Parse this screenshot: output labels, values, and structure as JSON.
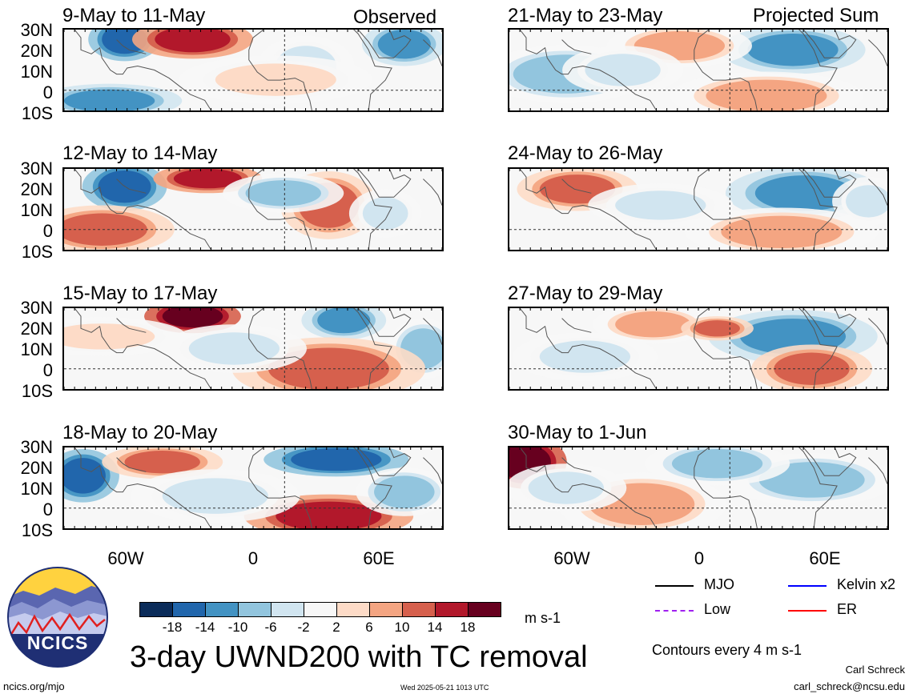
{
  "panels_left": [
    {
      "title": "9-May to 11-May",
      "label": "Observed"
    },
    {
      "title": "12-May to 14-May",
      "label": ""
    },
    {
      "title": "15-May to 17-May",
      "label": ""
    },
    {
      "title": "18-May to 20-May",
      "label": ""
    }
  ],
  "panels_right": [
    {
      "title": "21-May to 23-May",
      "label": "Projected Sum"
    },
    {
      "title": "24-May to 26-May",
      "label": ""
    },
    {
      "title": "27-May to 29-May",
      "label": ""
    },
    {
      "title": "30-May to 1-Jun",
      "label": ""
    }
  ],
  "lat_labels": [
    "30N",
    "20N",
    "10N",
    "0",
    "10S"
  ],
  "lon_labels": [
    "60W",
    "0",
    "60E"
  ],
  "colorbar": {
    "ticks": [
      "-18",
      "-14",
      "-10",
      "-6",
      "-2",
      "2",
      "6",
      "10",
      "14",
      "18"
    ],
    "colors": [
      "#0b2c5a",
      "#2166ac",
      "#4393c3",
      "#92c5de",
      "#d1e5f0",
      "#f7f7f7",
      "#fddbc7",
      "#f4a582",
      "#d6604d",
      "#b2182b",
      "#67001f"
    ],
    "units": "m s-1"
  },
  "legend": [
    {
      "name": "MJO",
      "color": "#000000"
    },
    {
      "name": "Kelvin x2",
      "color": "#0000ff"
    },
    {
      "name": "Low",
      "color": "#a020f0"
    },
    {
      "name": "ER",
      "color": "#ff0000"
    }
  ],
  "contours_note": "Contours every 4 m s-1",
  "main_title": "3-day UWND200 with TC removal",
  "logo_text": "NCICS",
  "footer": {
    "left": "ncics.org/mjo",
    "center": "Wed 2025-05-21 1013 UTC",
    "author": "Carl Schreck",
    "email": "carl_schreck@ncsu.edu"
  }
}
